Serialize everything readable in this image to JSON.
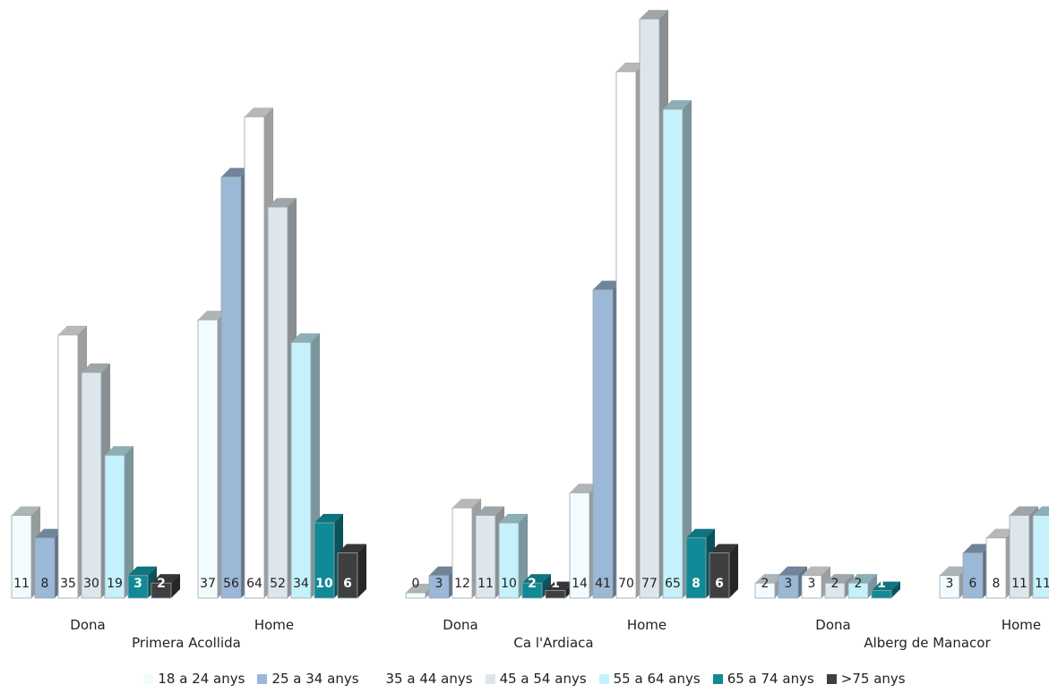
{
  "chart_data": {
    "type": "bar",
    "style": "3d clustered columns",
    "groups": [
      {
        "name": "Primera Acollida",
        "categories": [
          "Dona",
          "Home"
        ]
      },
      {
        "name": "Ca l'Ardiaca",
        "categories": [
          "Dona",
          "Home"
        ]
      },
      {
        "name": "Alberg de Manacor",
        "categories": [
          "Dona",
          "Home"
        ]
      }
    ],
    "categories": [
      "Dona",
      "Home",
      "Dona",
      "Home",
      "Dona",
      "Home"
    ],
    "series": [
      {
        "name": "18 a 24 anys",
        "color": "#f2fbfd",
        "values": [
          11,
          37,
          0,
          14,
          2,
          3
        ]
      },
      {
        "name": "25 a 34 anys",
        "color": "#9bb8d6",
        "values": [
          8,
          56,
          3,
          41,
          3,
          6
        ]
      },
      {
        "name": "35 a 44 anys",
        "color": "#ffffff",
        "values": [
          35,
          64,
          12,
          70,
          3,
          8
        ]
      },
      {
        "name": "45 a 54 anys",
        "color": "#dde6ec",
        "values": [
          30,
          52,
          11,
          77,
          2,
          11
        ]
      },
      {
        "name": "55 a 64 anys",
        "color": "#c4f1fb",
        "values": [
          19,
          34,
          10,
          65,
          2,
          11
        ]
      },
      {
        "name": "65 a 74 anys",
        "color": "#108a96",
        "values": [
          3,
          10,
          2,
          8,
          1,
          null
        ]
      },
      {
        "name": ">75 anys",
        "color": "#3f3f3f",
        "values": [
          2,
          6,
          1,
          6,
          null,
          null
        ]
      }
    ],
    "data_labels": true,
    "grid": false,
    "legend_position": "bottom"
  }
}
